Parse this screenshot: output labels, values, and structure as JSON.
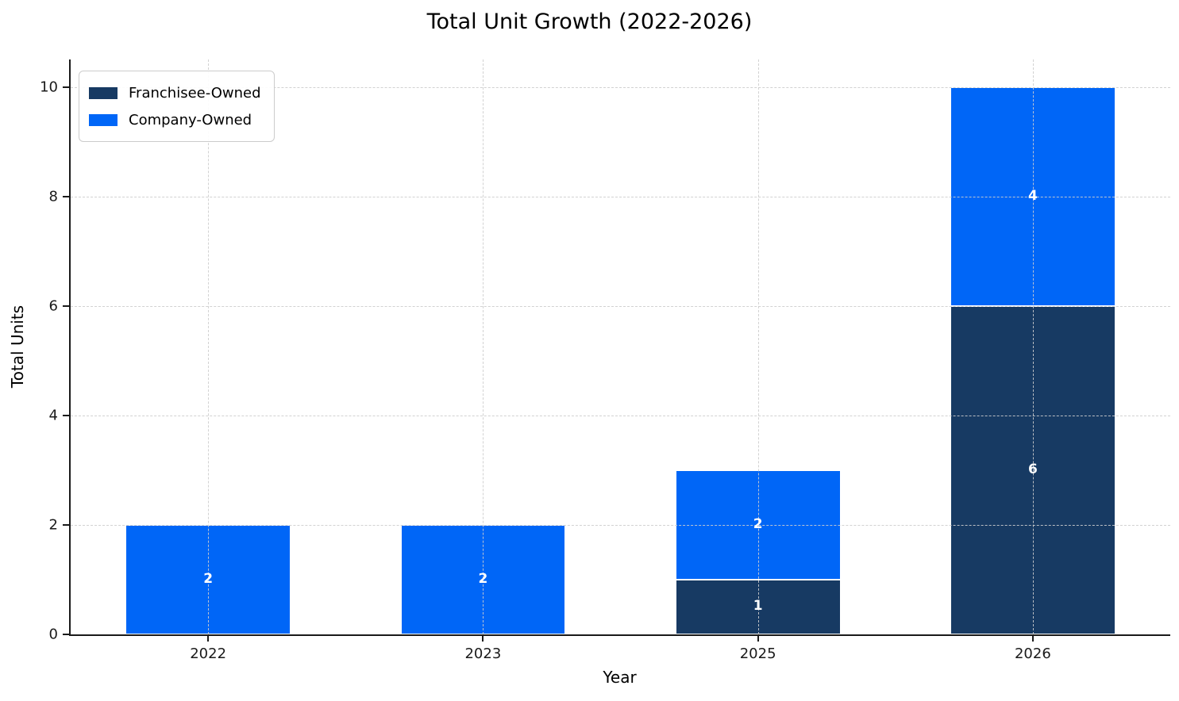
{
  "chart_data": {
    "type": "bar",
    "stacked": true,
    "title": "Total Unit Growth (2022-2026)",
    "xlabel": "Year",
    "ylabel": "Total Units",
    "categories": [
      "2022",
      "2023",
      "2025",
      "2026"
    ],
    "series": [
      {
        "name": "Franchisee-Owned",
        "color": "#173A63",
        "values": [
          0,
          0,
          1,
          6
        ]
      },
      {
        "name": "Company-Owned",
        "color": "#0066F7",
        "values": [
          2,
          2,
          2,
          4
        ]
      }
    ],
    "bar_labels": [
      {
        "category": "2022",
        "segments": [
          {
            "series": "Company-Owned",
            "value": 2
          }
        ]
      },
      {
        "category": "2023",
        "segments": [
          {
            "series": "Company-Owned",
            "value": 2
          }
        ]
      },
      {
        "category": "2025",
        "segments": [
          {
            "series": "Franchisee-Owned",
            "value": 1
          },
          {
            "series": "Company-Owned",
            "value": 2
          }
        ]
      },
      {
        "category": "2026",
        "segments": [
          {
            "series": "Franchisee-Owned",
            "value": 6
          },
          {
            "series": "Company-Owned",
            "value": 4
          }
        ]
      }
    ],
    "ylim": [
      0,
      10.5
    ],
    "yticks": [
      0,
      2,
      4,
      6,
      8,
      10
    ],
    "grid": true,
    "grid_style": "dashed",
    "legend_position": "upper-left",
    "bar_label_color": "#ffffff",
    "edge_color": "#ffffff"
  }
}
